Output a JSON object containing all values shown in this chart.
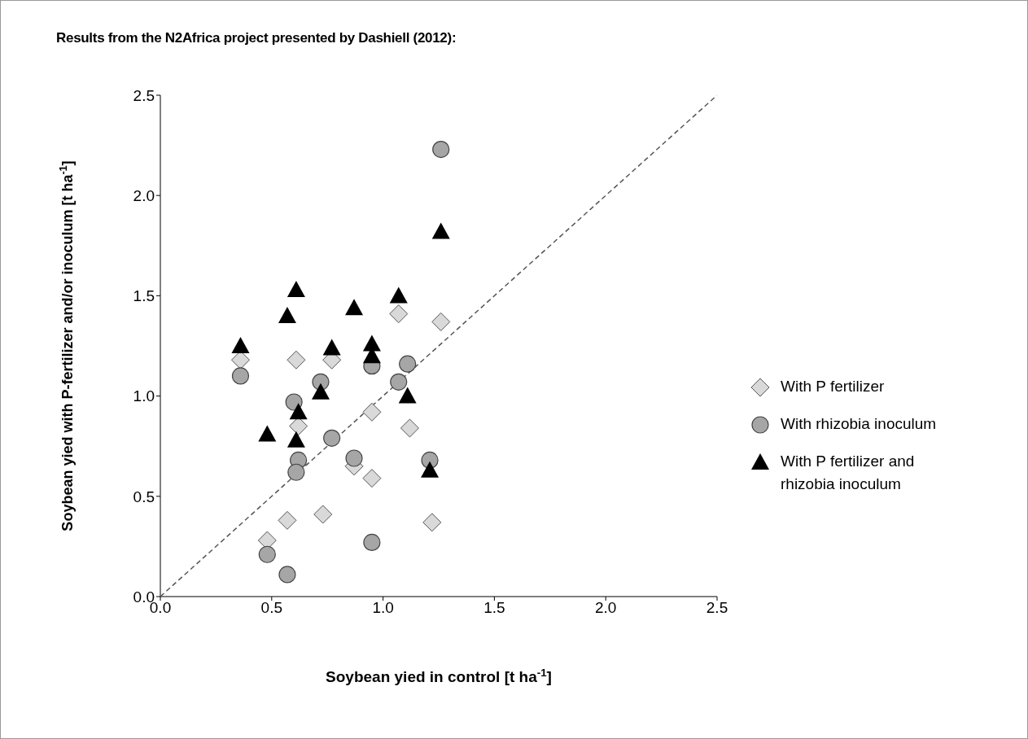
{
  "chart_data": {
    "type": "scatter",
    "title": "Results from the N2Africa project presented by Dashiell (2012):",
    "xlabel": "Soybean yied in control [t ha$^{-1}$]",
    "ylabel": "Soybean yied with P-fertilizer and/or inoculum [t ha$^{-1}$]",
    "xlim": [
      0,
      2.5
    ],
    "ylim": [
      0,
      2.5
    ],
    "xticks": [
      {
        "value": 0,
        "label": "0.0"
      },
      {
        "value": 0.5,
        "label": "0.5"
      },
      {
        "value": 1,
        "label": "1.0"
      },
      {
        "value": 1.5,
        "label": "1.5"
      },
      {
        "value": 2,
        "label": "2.0"
      },
      {
        "value": 2.5,
        "label": "2.5"
      }
    ],
    "yticks": [
      {
        "value": 0,
        "label": "0.0"
      },
      {
        "value": 0.5,
        "label": "0.5"
      },
      {
        "value": 1,
        "label": "1.0"
      },
      {
        "value": 1.5,
        "label": "1.5"
      },
      {
        "value": 2,
        "label": "2.0"
      },
      {
        "value": 2.5,
        "label": "2.5"
      }
    ],
    "grid": false,
    "legend": "right",
    "series": [
      {
        "type": "line",
        "color": "#555555",
        "line_style": "dashed",
        "marker": "none",
        "x": [
          0,
          2.5
        ],
        "values": [
          0,
          2.5
        ]
      },
      {
        "name": "With P fertilizer",
        "marker": "diamond",
        "color": "#d9d9d9",
        "x": [
          0.36,
          0.61,
          0.77,
          1.07,
          1.26,
          0.62,
          0.95,
          1.12,
          0.87,
          0.95,
          0.57,
          0.73,
          0.48,
          1.22
        ],
        "values": [
          1.18,
          1.18,
          1.18,
          1.41,
          1.37,
          0.85,
          0.92,
          0.84,
          0.65,
          0.59,
          0.38,
          0.41,
          0.28,
          0.37
        ]
      },
      {
        "name": "With rhizobia inoculum",
        "marker": "circle",
        "color": "#a6a6a6",
        "x": [
          1.26,
          0.36,
          0.72,
          0.95,
          1.07,
          1.11,
          0.6,
          0.62,
          0.61,
          0.77,
          0.87,
          1.21,
          0.48,
          0.57,
          0.95
        ],
        "values": [
          2.23,
          1.1,
          1.07,
          1.15,
          1.07,
          1.16,
          0.97,
          0.68,
          0.62,
          0.79,
          0.69,
          0.68,
          0.21,
          0.11,
          0.27
        ]
      },
      {
        "name": "With P fertilizer and rhizobia inoculum",
        "marker": "triangle",
        "color": "#000000",
        "x": [
          0.36,
          0.57,
          0.61,
          0.87,
          0.77,
          1.07,
          0.95,
          0.95,
          1.26,
          0.72,
          1.11,
          0.48,
          0.62,
          0.61,
          1.21
        ],
        "values": [
          1.25,
          1.4,
          1.53,
          1.44,
          1.24,
          1.5,
          1.26,
          1.2,
          1.82,
          1.02,
          1.0,
          0.81,
          0.92,
          0.78,
          0.63
        ]
      }
    ]
  }
}
